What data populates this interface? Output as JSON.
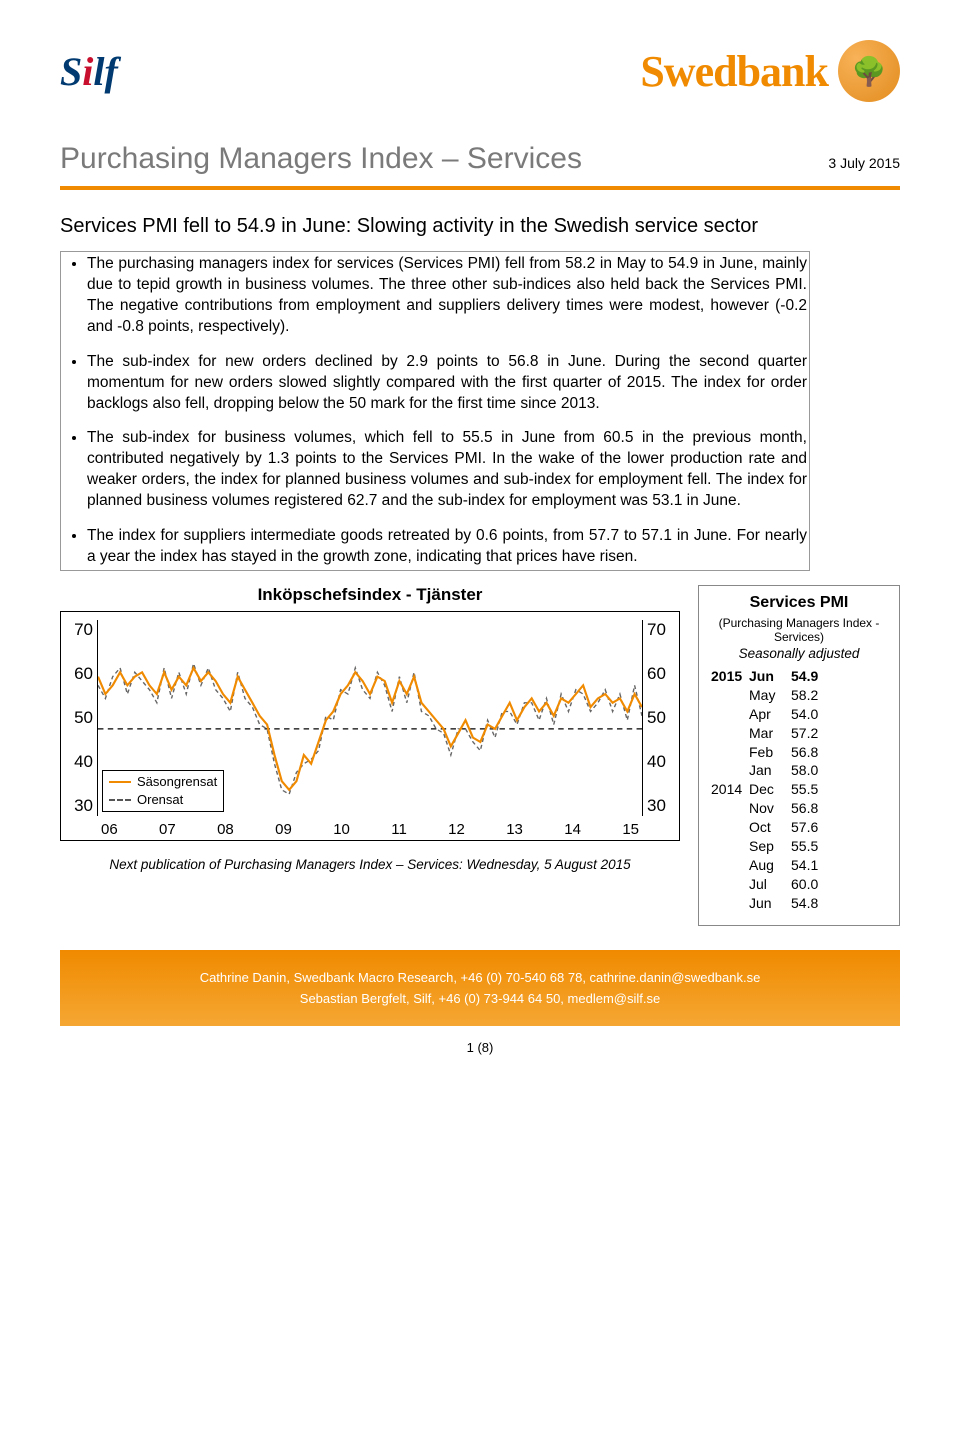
{
  "logos": {
    "silf_text_1": "S",
    "silf_text_2": "i",
    "silf_text_3": "lf",
    "swedbank_text": "Swedbank",
    "swedbank_color": "#f08a00",
    "swedbank_tree": "🌳"
  },
  "header": {
    "title": "Purchasing Managers Index – Services",
    "date": "3 July 2015"
  },
  "subhead": "Services PMI fell to 54.9 in June: Slowing activity in the Swedish service sector",
  "bullets": [
    "The purchasing managers index for services (Services PMI) fell from 58.2 in May to 54.9 in June, mainly due to tepid growth in business volumes. The three other sub-indices also held back the Services PMI. The negative contributions from employment and suppliers delivery times were modest, however (-0.2 and -0.8 points, respectively).",
    "The sub-index for new orders declined by 2.9 points to 56.8 in June. During the second quarter momentum for new orders slowed slightly compared with the first quarter of 2015. The index for order backlogs also fell, dropping below the 50 mark for the first time since 2013.",
    "The sub-index for business volumes, which fell to 55.5 in June from 60.5 in the previous month, contributed negatively by 1.3 points to the Services PMI. In the wake of the lower production rate and weaker orders, the index for planned business volumes and sub-index for employment fell. The index for planned business volumes registered 62.7 and the sub-index for employment was 53.1 in June.",
    "The index for suppliers intermediate goods retreated by 0.6 points, from 57.7 to 57.1 in June. For nearly a year the index has stayed in the growth zone, indicating that prices have risen."
  ],
  "chart": {
    "title": "Inköpschefsindex - Tjänster",
    "type": "line",
    "y_ticks": [
      "70",
      "60",
      "50",
      "40",
      "30"
    ],
    "x_ticks": [
      "06",
      "07",
      "08",
      "09",
      "10",
      "11",
      "12",
      "13",
      "14",
      "15"
    ],
    "ylim": [
      30,
      75
    ],
    "legend": {
      "solid": "Säsongrensat",
      "dashed": "Orensat"
    },
    "line_color": "#f08a00",
    "dash_color": "#666666",
    "ref_line": 50,
    "series_solid": [
      62,
      58,
      60,
      63,
      60,
      62,
      63,
      60,
      58,
      63,
      59,
      62,
      60,
      64,
      61,
      63,
      61,
      58,
      56,
      62,
      59,
      56,
      53,
      51,
      44,
      38,
      36,
      38,
      44,
      42,
      47,
      52,
      54,
      58,
      60,
      63,
      61,
      58,
      62,
      61,
      56,
      61,
      58,
      62,
      56,
      54,
      52,
      50,
      46,
      49,
      52,
      48,
      47,
      51,
      50,
      53,
      56,
      52,
      55,
      57,
      54,
      56,
      53,
      57,
      56,
      58,
      60,
      55,
      57,
      58,
      56,
      57,
      54,
      58,
      55
    ],
    "series_dashed": [
      60,
      57,
      62,
      64,
      58,
      63,
      61,
      59,
      56,
      64,
      57,
      63,
      58,
      65,
      60,
      64,
      59,
      57,
      54,
      63,
      57,
      55,
      51,
      50,
      42,
      36,
      35,
      40,
      42,
      43,
      45,
      53,
      52,
      59,
      58,
      64,
      59,
      57,
      63,
      60,
      54,
      62,
      56,
      63,
      54,
      53,
      50,
      49,
      44,
      50,
      50,
      47,
      45,
      52,
      48,
      54,
      54,
      51,
      56,
      56,
      52,
      57,
      51,
      58,
      54,
      59,
      58,
      54,
      56,
      59,
      54,
      58,
      52,
      60,
      53
    ]
  },
  "next_pub": "Next publication of Purchasing Managers Index – Services: Wednesday, 5 August 2015",
  "pmi_panel": {
    "title": "Services PMI",
    "subtitle": "(Purchasing Managers Index - Services)",
    "season": "Seasonally adjusted",
    "rows": [
      {
        "year": "2015",
        "mon": "Jun",
        "val": "54.9",
        "bold": true
      },
      {
        "year": "",
        "mon": "May",
        "val": "58.2"
      },
      {
        "year": "",
        "mon": "Apr",
        "val": "54.0"
      },
      {
        "year": "",
        "mon": "Mar",
        "val": "57.2"
      },
      {
        "year": "",
        "mon": "Feb",
        "val": "56.8"
      },
      {
        "year": "",
        "mon": "Jan",
        "val": "58.0"
      },
      {
        "year": "2014",
        "mon": "Dec",
        "val": "55.5"
      },
      {
        "year": "",
        "mon": "Nov",
        "val": "56.8"
      },
      {
        "year": "",
        "mon": "Oct",
        "val": "57.6"
      },
      {
        "year": "",
        "mon": "Sep",
        "val": "55.5"
      },
      {
        "year": "",
        "mon": "Aug",
        "val": "54.1"
      },
      {
        "year": "",
        "mon": "Jul",
        "val": "60.0"
      },
      {
        "year": "",
        "mon": "Jun",
        "val": "54.8"
      }
    ]
  },
  "contacts": {
    "line1": "Cathrine Danin, Swedbank Macro Research, +46 (0) 70-540 68 78, cathrine.danin@swedbank.se",
    "line2": "Sebastian Bergfelt, Silf, +46 (0) 73-944 64 50, medlem@silf.se"
  },
  "page_num": "1 (8)"
}
